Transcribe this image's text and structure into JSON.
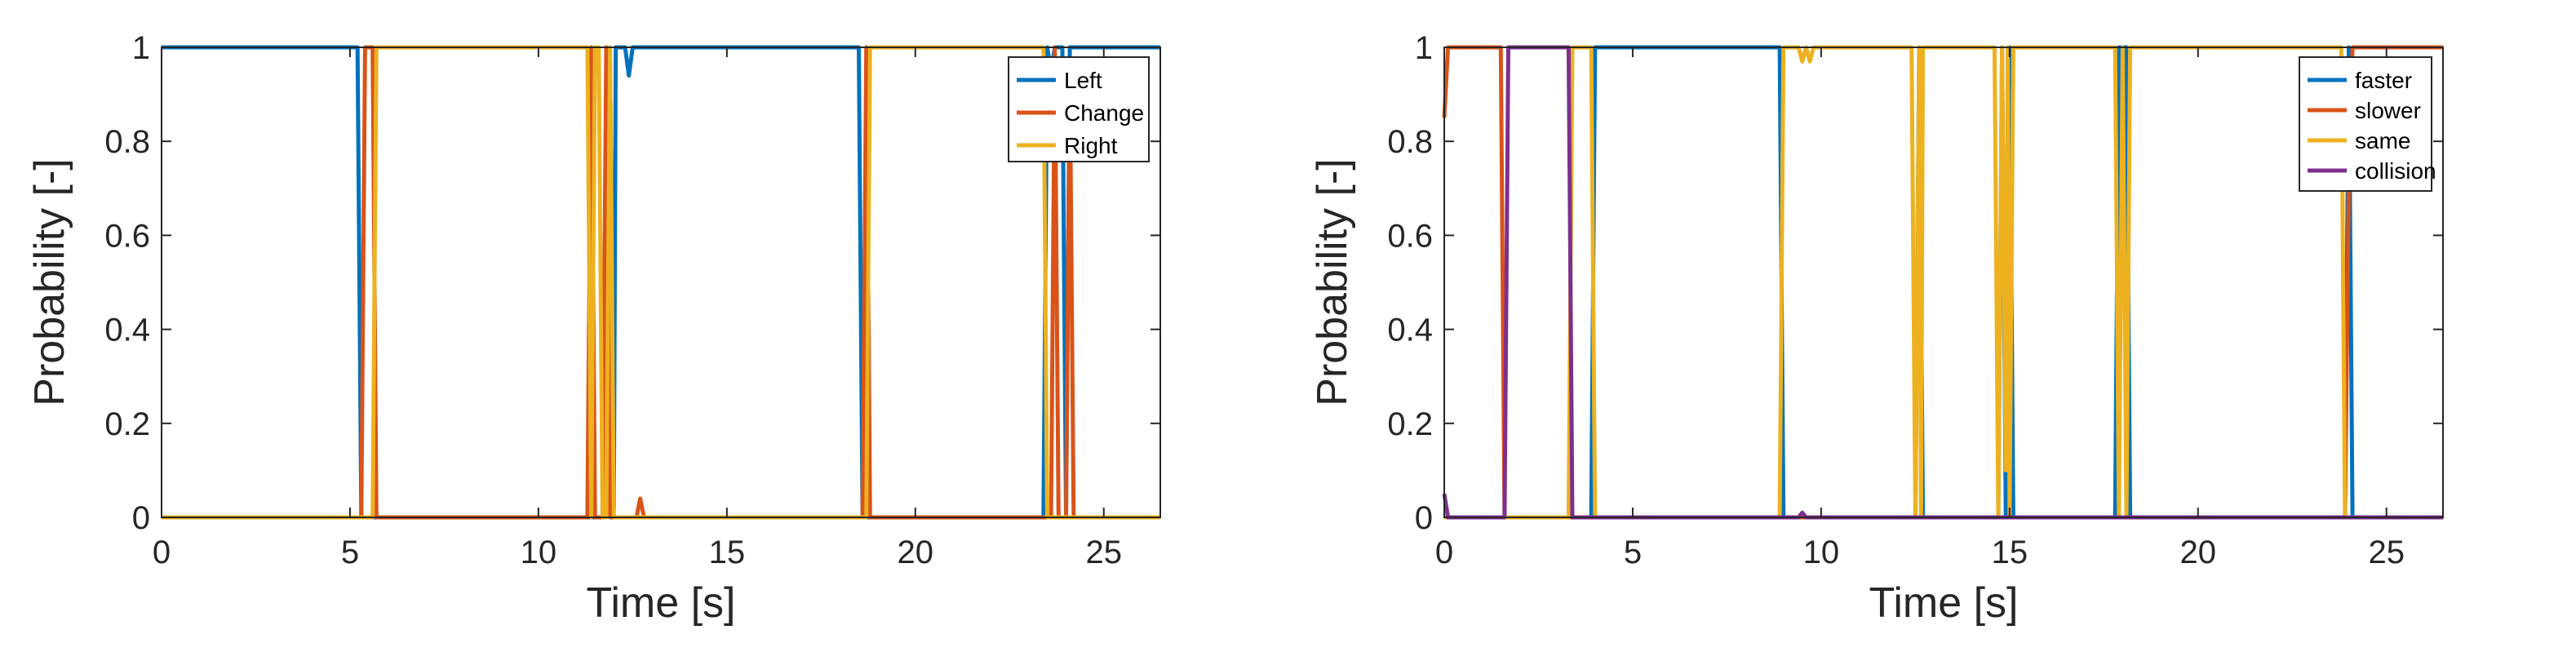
{
  "chart_data": [
    {
      "type": "line",
      "title": "",
      "xlabel": "Time [s]",
      "ylabel": "Probability [-]",
      "xlim": [
        0,
        26.5
      ],
      "ylim": [
        0,
        1
      ],
      "xticks": [
        0,
        5,
        10,
        15,
        20,
        25
      ],
      "yticks": [
        0,
        0.2,
        0.4,
        0.6,
        0.8,
        1
      ],
      "xtick_labels": [
        "0",
        "5",
        "10",
        "15",
        "20",
        "25"
      ],
      "ytick_labels": [
        "0",
        "0.2",
        "0.4",
        "0.6",
        "0.8",
        "1"
      ],
      "legend_position": "top-right",
      "series": [
        {
          "name": "Left",
          "color": "#0072BD",
          "points": [
            [
              0,
              1
            ],
            [
              5.2,
              1
            ],
            [
              5.3,
              0
            ],
            [
              11.8,
              0
            ],
            [
              11.9,
              0.98
            ],
            [
              12.0,
              0.02
            ],
            [
              12.05,
              1
            ],
            [
              12.3,
              1
            ],
            [
              12.4,
              0.94
            ],
            [
              12.5,
              1
            ],
            [
              18.5,
              1
            ],
            [
              18.6,
              0
            ],
            [
              23.4,
              0
            ],
            [
              23.5,
              1
            ],
            [
              23.6,
              0.95
            ],
            [
              23.7,
              1
            ],
            [
              23.9,
              1
            ],
            [
              24.0,
              0
            ],
            [
              24.1,
              1
            ],
            [
              26.5,
              1
            ]
          ]
        },
        {
          "name": "Change",
          "color": "#D95319",
          "points": [
            [
              0,
              0
            ],
            [
              5.3,
              0
            ],
            [
              5.4,
              1
            ],
            [
              5.6,
              1
            ],
            [
              5.7,
              0
            ],
            [
              11.3,
              0
            ],
            [
              11.4,
              1
            ],
            [
              11.5,
              0
            ],
            [
              11.7,
              0
            ],
            [
              11.8,
              1
            ],
            [
              11.9,
              0
            ],
            [
              12.6,
              0
            ],
            [
              12.7,
              0.04
            ],
            [
              12.8,
              0
            ],
            [
              18.6,
              0
            ],
            [
              18.7,
              1
            ],
            [
              18.8,
              0
            ],
            [
              23.6,
              0
            ],
            [
              23.7,
              1
            ],
            [
              23.8,
              0
            ],
            [
              24.0,
              0
            ],
            [
              24.1,
              0.95
            ],
            [
              24.2,
              0
            ],
            [
              26.5,
              0
            ]
          ]
        },
        {
          "name": "Right",
          "color": "#EDB120",
          "points": [
            [
              0,
              0
            ],
            [
              5.6,
              0
            ],
            [
              5.7,
              1
            ],
            [
              11.3,
              1
            ],
            [
              11.4,
              0
            ],
            [
              11.5,
              1
            ],
            [
              11.6,
              1
            ],
            [
              11.7,
              0
            ],
            [
              11.8,
              0
            ],
            [
              11.9,
              1
            ],
            [
              12.0,
              0
            ],
            [
              18.7,
              0
            ],
            [
              18.8,
              1
            ],
            [
              23.4,
              1
            ],
            [
              23.5,
              0
            ],
            [
              24.2,
              0
            ],
            [
              26.5,
              0
            ]
          ]
        }
      ]
    },
    {
      "type": "line",
      "title": "",
      "xlabel": "Time [s]",
      "ylabel": "Probability [-]",
      "xlim": [
        0,
        26.5
      ],
      "ylim": [
        0,
        1
      ],
      "xticks": [
        0,
        5,
        10,
        15,
        20,
        25
      ],
      "yticks": [
        0,
        0.2,
        0.4,
        0.6,
        0.8,
        1
      ],
      "xtick_labels": [
        "0",
        "5",
        "10",
        "15",
        "20",
        "25"
      ],
      "ytick_labels": [
        "0",
        "0.2",
        "0.4",
        "0.6",
        "0.8",
        "1"
      ],
      "legend_position": "top-right",
      "series": [
        {
          "name": "faster",
          "color": "#0072BD",
          "points": [
            [
              0,
              0
            ],
            [
              3.9,
              0
            ],
            [
              4.0,
              1
            ],
            [
              8.9,
              1
            ],
            [
              9.0,
              0
            ],
            [
              12.5,
              0
            ],
            [
              12.6,
              1
            ],
            [
              12.7,
              0
            ],
            [
              14.7,
              0
            ],
            [
              14.8,
              1
            ],
            [
              14.9,
              0
            ],
            [
              15.0,
              1
            ],
            [
              15.1,
              0
            ],
            [
              17.8,
              0
            ],
            [
              17.9,
              1
            ],
            [
              18.1,
              1
            ],
            [
              18.2,
              0
            ],
            [
              23.9,
              0
            ],
            [
              24.0,
              1
            ],
            [
              24.1,
              0
            ],
            [
              26.5,
              0
            ]
          ]
        },
        {
          "name": "slower",
          "color": "#D95319",
          "points": [
            [
              0,
              0.85
            ],
            [
              0.1,
              1
            ],
            [
              1.5,
              1
            ],
            [
              1.6,
              0
            ],
            [
              23.9,
              0
            ],
            [
              24.0,
              0.7
            ],
            [
              24.1,
              1
            ],
            [
              26.5,
              1
            ]
          ]
        },
        {
          "name": "same",
          "color": "#EDB120",
          "points": [
            [
              0,
              0
            ],
            [
              1.6,
              0
            ],
            [
              1.7,
              0
            ],
            [
              3.3,
              0
            ],
            [
              3.4,
              1
            ],
            [
              3.9,
              1
            ],
            [
              4.0,
              0
            ],
            [
              8.9,
              0
            ],
            [
              9.0,
              1
            ],
            [
              9.4,
              1
            ],
            [
              9.5,
              0.97
            ],
            [
              9.6,
              1
            ],
            [
              9.7,
              0.97
            ],
            [
              9.8,
              1
            ],
            [
              12.4,
              1
            ],
            [
              12.5,
              0
            ],
            [
              12.6,
              1
            ],
            [
              12.65,
              0
            ],
            [
              12.7,
              1
            ],
            [
              14.6,
              1
            ],
            [
              14.7,
              0
            ],
            [
              14.8,
              1
            ],
            [
              14.9,
              0.1
            ],
            [
              14.95,
              1
            ],
            [
              15.0,
              0
            ],
            [
              15.1,
              1
            ],
            [
              17.8,
              1
            ],
            [
              17.9,
              0
            ],
            [
              18.0,
              1
            ],
            [
              18.1,
              0
            ],
            [
              18.2,
              1
            ],
            [
              23.8,
              1
            ],
            [
              23.9,
              0
            ],
            [
              26.5,
              0
            ]
          ]
        },
        {
          "name": "collision",
          "color": "#7E2F8E",
          "points": [
            [
              0,
              0.05
            ],
            [
              0.1,
              0
            ],
            [
              1.6,
              0
            ],
            [
              1.7,
              1
            ],
            [
              3.3,
              1
            ],
            [
              3.4,
              0
            ],
            [
              9.4,
              0
            ],
            [
              9.5,
              0.01
            ],
            [
              9.6,
              0
            ],
            [
              26.5,
              0
            ]
          ]
        }
      ]
    }
  ]
}
